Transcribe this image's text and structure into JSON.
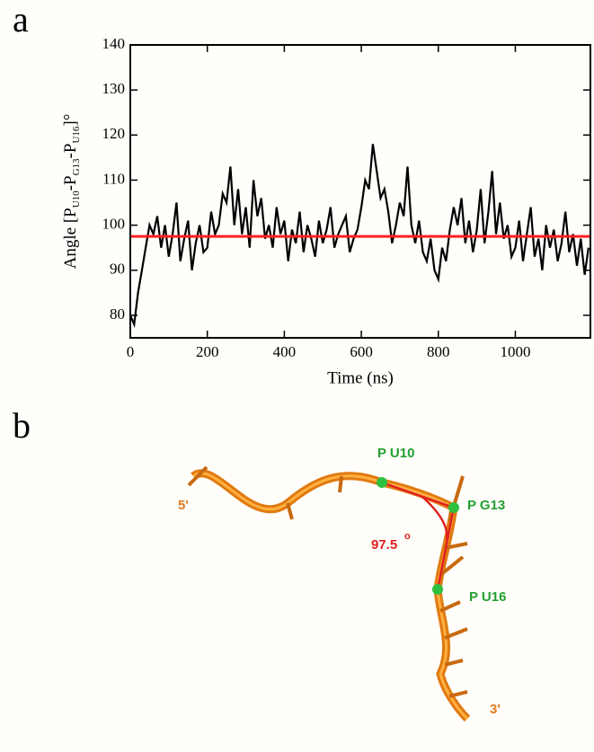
{
  "panels": {
    "a": "a",
    "b": "b"
  },
  "chart_data": {
    "type": "line",
    "xlabel": "Time (ns)",
    "ylabel": [
      {
        "text": "Angle [P"
      },
      {
        "text": "U10",
        "sub": true
      },
      {
        "text": "-P"
      },
      {
        "text": "G13",
        "sub": true
      },
      {
        "text": "-P"
      },
      {
        "text": "U16",
        "sub": true
      },
      {
        "text": "]°"
      }
    ],
    "x": [
      0,
      10,
      20,
      30,
      40,
      50,
      60,
      70,
      80,
      90,
      100,
      110,
      120,
      130,
      140,
      150,
      160,
      170,
      180,
      190,
      200,
      210,
      220,
      230,
      240,
      250,
      260,
      270,
      280,
      290,
      300,
      310,
      320,
      330,
      340,
      350,
      360,
      370,
      380,
      390,
      400,
      410,
      420,
      430,
      440,
      450,
      460,
      470,
      480,
      490,
      500,
      510,
      520,
      530,
      540,
      550,
      560,
      570,
      580,
      590,
      600,
      610,
      620,
      630,
      640,
      650,
      660,
      670,
      680,
      690,
      700,
      710,
      720,
      730,
      740,
      750,
      760,
      770,
      780,
      790,
      800,
      810,
      820,
      830,
      840,
      850,
      860,
      870,
      880,
      890,
      900,
      910,
      920,
      930,
      940,
      950,
      960,
      970,
      980,
      990,
      1000,
      1010,
      1020,
      1030,
      1040,
      1050,
      1060,
      1070,
      1080,
      1090,
      1100,
      1110,
      1120,
      1130,
      1140,
      1150,
      1160,
      1170,
      1180,
      1190
    ],
    "series": [
      {
        "color": "#000000",
        "values": [
          80,
          78,
          85,
          90,
          95,
          100,
          98,
          102,
          95,
          100,
          93,
          98,
          105,
          92,
          97,
          101,
          90,
          96,
          100,
          94,
          95,
          103,
          98,
          100,
          107,
          105,
          113,
          100,
          108,
          98,
          104,
          95,
          110,
          102,
          106,
          97,
          100,
          95,
          104,
          98,
          101,
          92,
          99,
          96,
          103,
          94,
          100,
          97,
          93,
          101,
          96,
          99,
          104,
          95,
          98,
          100,
          102,
          94,
          97,
          99,
          104,
          110,
          108,
          118,
          112,
          106,
          108,
          103,
          96,
          100,
          105,
          102,
          113,
          100,
          96,
          101,
          94,
          92,
          97,
          90,
          88,
          95,
          92,
          99,
          104,
          100,
          106,
          96,
          101,
          94,
          99,
          108,
          96,
          103,
          112,
          98,
          105,
          97,
          100,
          93,
          95,
          101,
          92,
          98,
          104,
          93,
          97,
          90,
          100,
          95,
          99,
          92,
          96,
          103,
          94,
          98,
          91,
          97,
          89,
          95
        ]
      }
    ],
    "hline": {
      "value": 97.5,
      "color": "#ff2020"
    },
    "xlim": [
      0,
      1195
    ],
    "ylim": [
      75,
      140
    ],
    "xticks": [
      0,
      200,
      400,
      600,
      800,
      1000
    ],
    "yticks": [
      80,
      90,
      100,
      110,
      120,
      130,
      140
    ]
  },
  "structure": {
    "u10": "P U10",
    "g13": "P G13",
    "u16": "P U16",
    "five": "5'",
    "three": "3'",
    "angle": "97.5",
    "degree": "o"
  }
}
